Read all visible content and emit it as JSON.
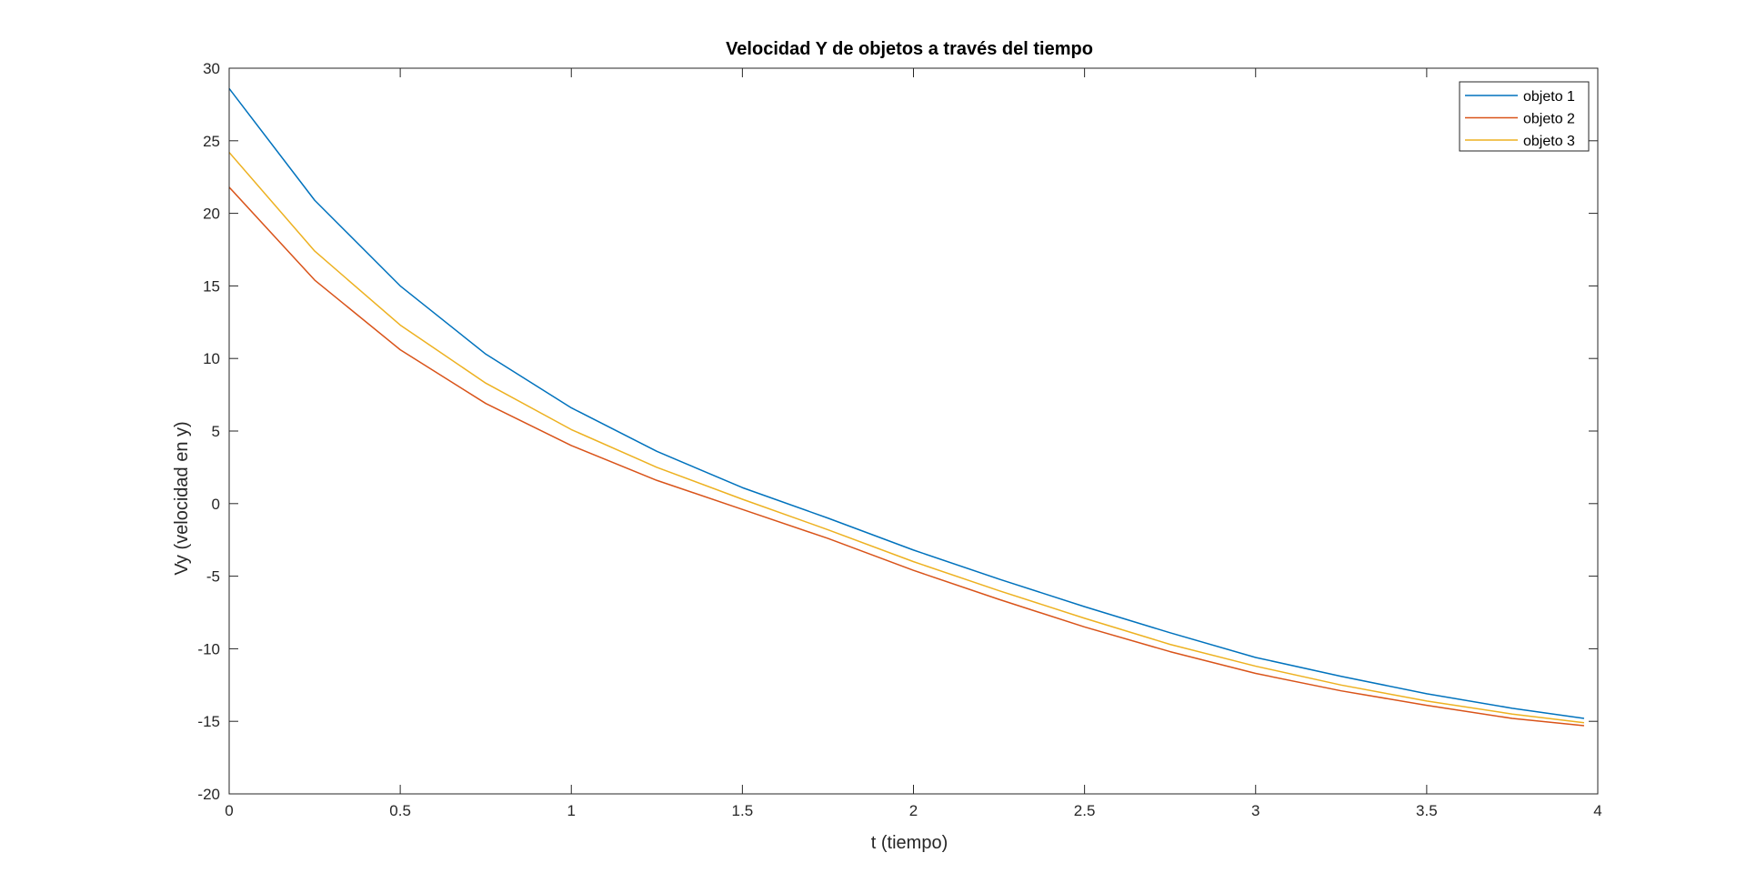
{
  "chart_data": {
    "type": "line",
    "title": "Velocidad Y de objetos a través del tiempo",
    "xlabel": "t (tiempo)",
    "ylabel": "Vy (velocidad en y)",
    "xlim": [
      0,
      4
    ],
    "ylim": [
      -20,
      30
    ],
    "xticks": [
      0,
      0.5,
      1,
      1.5,
      2,
      2.5,
      3,
      3.5,
      4
    ],
    "xtick_labels": [
      "0",
      "0.5",
      "1",
      "1.5",
      "2",
      "2.5",
      "3",
      "3.5",
      "4"
    ],
    "yticks": [
      -20,
      -15,
      -10,
      -5,
      0,
      5,
      10,
      15,
      20,
      25,
      30
    ],
    "ytick_labels": [
      "-20",
      "-15",
      "-10",
      "-5",
      "0",
      "5",
      "10",
      "15",
      "20",
      "25",
      "30"
    ],
    "grid": false,
    "legend_position": "top-right",
    "x": [
      0,
      0.25,
      0.5,
      0.75,
      1,
      1.25,
      1.5,
      1.75,
      2,
      2.25,
      2.5,
      2.75,
      3,
      3.25,
      3.5,
      3.75,
      3.96
    ],
    "series": [
      {
        "name": "objeto 1",
        "color": "#0072BD",
        "values": [
          28.6,
          20.9,
          15.0,
          10.3,
          6.6,
          3.6,
          1.1,
          -1.0,
          -3.2,
          -5.2,
          -7.1,
          -8.9,
          -10.6,
          -11.9,
          -13.1,
          -14.1,
          -14.8
        ]
      },
      {
        "name": "objeto 2",
        "color": "#D95319",
        "values": [
          21.8,
          15.4,
          10.6,
          6.9,
          4.0,
          1.6,
          -0.4,
          -2.4,
          -4.6,
          -6.6,
          -8.5,
          -10.2,
          -11.7,
          -12.9,
          -13.9,
          -14.8,
          -15.3
        ]
      },
      {
        "name": "objeto 3",
        "color": "#EDB120",
        "values": [
          24.2,
          17.4,
          12.3,
          8.3,
          5.1,
          2.5,
          0.3,
          -1.8,
          -4.0,
          -6.0,
          -7.9,
          -9.7,
          -11.2,
          -12.5,
          -13.6,
          -14.5,
          -15.1
        ]
      }
    ]
  }
}
